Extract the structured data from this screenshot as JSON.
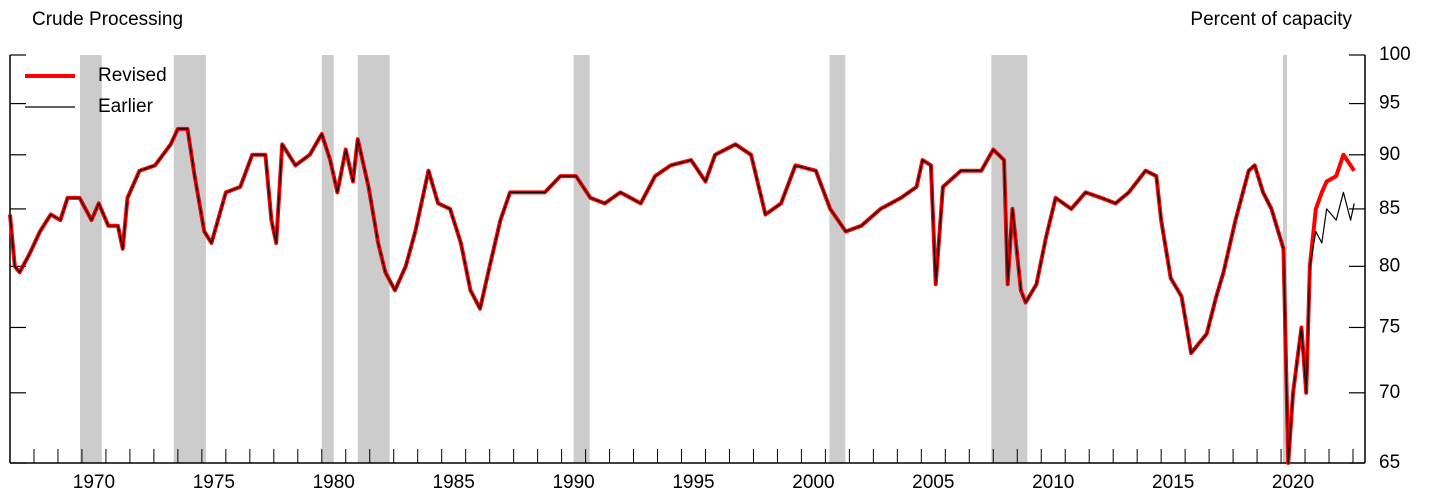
{
  "chart_data": {
    "type": "line",
    "title": "Crude Processing",
    "y_axis_label": "Percent of capacity",
    "log_scale": true,
    "legend": "top-left",
    "xlim": [
      1967,
      2023.5
    ],
    "ylim": [
      65,
      100
    ],
    "yticks": [
      65,
      70,
      75,
      80,
      85,
      90,
      95,
      100
    ],
    "xticks": [
      {
        "value": 1970.5,
        "label": "1970"
      },
      {
        "value": 1975.5,
        "label": "1975"
      },
      {
        "value": 1980.5,
        "label": "1980"
      },
      {
        "value": 1985.5,
        "label": "1985"
      },
      {
        "value": 1990.5,
        "label": "1990"
      },
      {
        "value": 1995.5,
        "label": "1995"
      },
      {
        "value": 2000.5,
        "label": "2000"
      },
      {
        "value": 2005.5,
        "label": "2005"
      },
      {
        "value": 2010.5,
        "label": "2010"
      },
      {
        "value": 2015.5,
        "label": "2015"
      },
      {
        "value": 2020.5,
        "label": "2020"
      }
    ],
    "xminor_ticks": [
      1967,
      1968,
      1969,
      1970,
      1971,
      1972,
      1973,
      1974,
      1975,
      1976,
      1977,
      1978,
      1979,
      1980,
      1981,
      1982,
      1983,
      1984,
      1985,
      1986,
      1987,
      1988,
      1989,
      1990,
      1991,
      1992,
      1993,
      1994,
      1995,
      1996,
      1997,
      1998,
      1999,
      2000,
      2001,
      2002,
      2003,
      2004,
      2005,
      2006,
      2007,
      2008,
      2009,
      2010,
      2011,
      2012,
      2013,
      2014,
      2015,
      2016,
      2017,
      2018,
      2019,
      2020,
      2021,
      2022,
      2023
    ],
    "shaded_periods": [
      [
        1969.92,
        1970.83
      ],
      [
        1973.83,
        1975.17
      ],
      [
        1980.0,
        1980.5
      ],
      [
        1981.5,
        1982.83
      ],
      [
        1990.5,
        1991.17
      ],
      [
        2001.17,
        2001.83
      ],
      [
        2007.92,
        2009.42
      ],
      [
        2020.08,
        2020.25
      ]
    ],
    "shade_color": "#cccccc",
    "x": [
      1967.0,
      1967.2,
      1967.4,
      1967.8,
      1968.25,
      1968.7,
      1969.1,
      1969.4,
      1969.9,
      1970.4,
      1970.7,
      1971.1,
      1971.5,
      1971.7,
      1971.9,
      1972.4,
      1973.05,
      1973.7,
      1974.0,
      1974.4,
      1974.7,
      1975.1,
      1975.4,
      1976.0,
      1976.6,
      1977.1,
      1977.65,
      1977.9,
      1978.1,
      1978.35,
      1978.9,
      1979.5,
      1980.0,
      1980.35,
      1980.65,
      1981.0,
      1981.3,
      1981.5,
      1981.95,
      1982.35,
      1982.65,
      1983.05,
      1983.5,
      1983.9,
      1984.45,
      1984.85,
      1985.35,
      1985.8,
      1986.2,
      1986.6,
      1987.0,
      1987.45,
      1987.85,
      1988.5,
      1989.3,
      1989.95,
      1990.6,
      1991.2,
      1991.8,
      1992.45,
      1993.3,
      1993.9,
      1994.55,
      1995.4,
      1996.0,
      1996.4,
      1997.25,
      1997.9,
      1998.5,
      1999.15,
      1999.75,
      2000.6,
      2001.2,
      2001.85,
      2002.5,
      2003.3,
      2004.15,
      2004.8,
      2005.05,
      2005.4,
      2005.6,
      2005.9,
      2006.65,
      2007.5,
      2008.0,
      2008.45,
      2008.6,
      2008.8,
      2009.15,
      2009.35,
      2009.8,
      2010.2,
      2010.6,
      2011.25,
      2011.85,
      2012.5,
      2013.1,
      2013.65,
      2014.35,
      2014.8,
      2015.0,
      2015.4,
      2015.85,
      2016.25,
      2016.9,
      2017.3,
      2017.6,
      2018.1,
      2018.65,
      2018.9,
      2019.25,
      2019.6,
      2020.1,
      2020.3,
      2020.5,
      2020.85,
      2021.05,
      2021.2,
      2021.45,
      2021.7,
      2021.9,
      2022.3,
      2022.6,
      2022.9,
      2023.05
    ],
    "series": [
      {
        "name": "Revised",
        "color": "#ff0000",
        "width": 4,
        "values": [
          84.5,
          80,
          79.5,
          81,
          83,
          84.5,
          84,
          86,
          86,
          84,
          85.5,
          83.5,
          83.5,
          81.5,
          86,
          88.5,
          89,
          91,
          92.5,
          92.5,
          88,
          83,
          82,
          86.5,
          87,
          90,
          90,
          84,
          82,
          91,
          89,
          90,
          92,
          89.5,
          86.5,
          90.5,
          87.5,
          91.5,
          87,
          82,
          79.5,
          78,
          80,
          83,
          88.5,
          85.5,
          85,
          82,
          78,
          76.5,
          80,
          84,
          86.5,
          86.5,
          86.5,
          88,
          88,
          86,
          85.5,
          86.5,
          85.5,
          88,
          89,
          89.5,
          87.5,
          90,
          91,
          90,
          84.5,
          85.5,
          89,
          88.5,
          85,
          83,
          83.5,
          85,
          86,
          87,
          89.5,
          89,
          78.5,
          87,
          88.5,
          88.5,
          90.5,
          89.5,
          78.5,
          85,
          78,
          77,
          78.5,
          82.5,
          86,
          85,
          86.5,
          86,
          85.5,
          86.5,
          88.5,
          88,
          84,
          79,
          77.5,
          73,
          74.5,
          77.5,
          79.5,
          84,
          88.5,
          89,
          86.5,
          85,
          81.5,
          65,
          70,
          75,
          70,
          80,
          85,
          86.5,
          87.5,
          88,
          90,
          89,
          88.5
        ]
      },
      {
        "name": "Earlier",
        "color": "#000000",
        "width": 1.2,
        "values": [
          84.5,
          80,
          79.5,
          81,
          83,
          84.5,
          84,
          86,
          86,
          84,
          85.5,
          83.5,
          83.5,
          81.5,
          86,
          88.5,
          89,
          91,
          92.5,
          92.5,
          88,
          83,
          82,
          86.5,
          87,
          90,
          90,
          84,
          82,
          91,
          89,
          90,
          92,
          89.5,
          86.5,
          90.5,
          87.5,
          91.5,
          87,
          82,
          79.5,
          78,
          80,
          83,
          88.5,
          85.5,
          85,
          82,
          78,
          76.5,
          80,
          84,
          86.5,
          86.5,
          86.5,
          88,
          88,
          86,
          85.5,
          86.5,
          85.5,
          88,
          89,
          89.5,
          87.5,
          90,
          91,
          90,
          84.5,
          85.5,
          89,
          88.5,
          85,
          83,
          83.5,
          85,
          86,
          87,
          89.5,
          89,
          78.5,
          87,
          88.5,
          88.5,
          90.5,
          89.5,
          78.5,
          85,
          78,
          77,
          78.5,
          82.5,
          86,
          85,
          86.5,
          86,
          85.5,
          86.5,
          88.5,
          88,
          84,
          79,
          77.5,
          73,
          74.5,
          77.5,
          79.5,
          84,
          88.5,
          89,
          86.5,
          85,
          81.5,
          65,
          70,
          75,
          70,
          80,
          83,
          82,
          85,
          84,
          86.5,
          84,
          85.5
        ]
      }
    ]
  }
}
